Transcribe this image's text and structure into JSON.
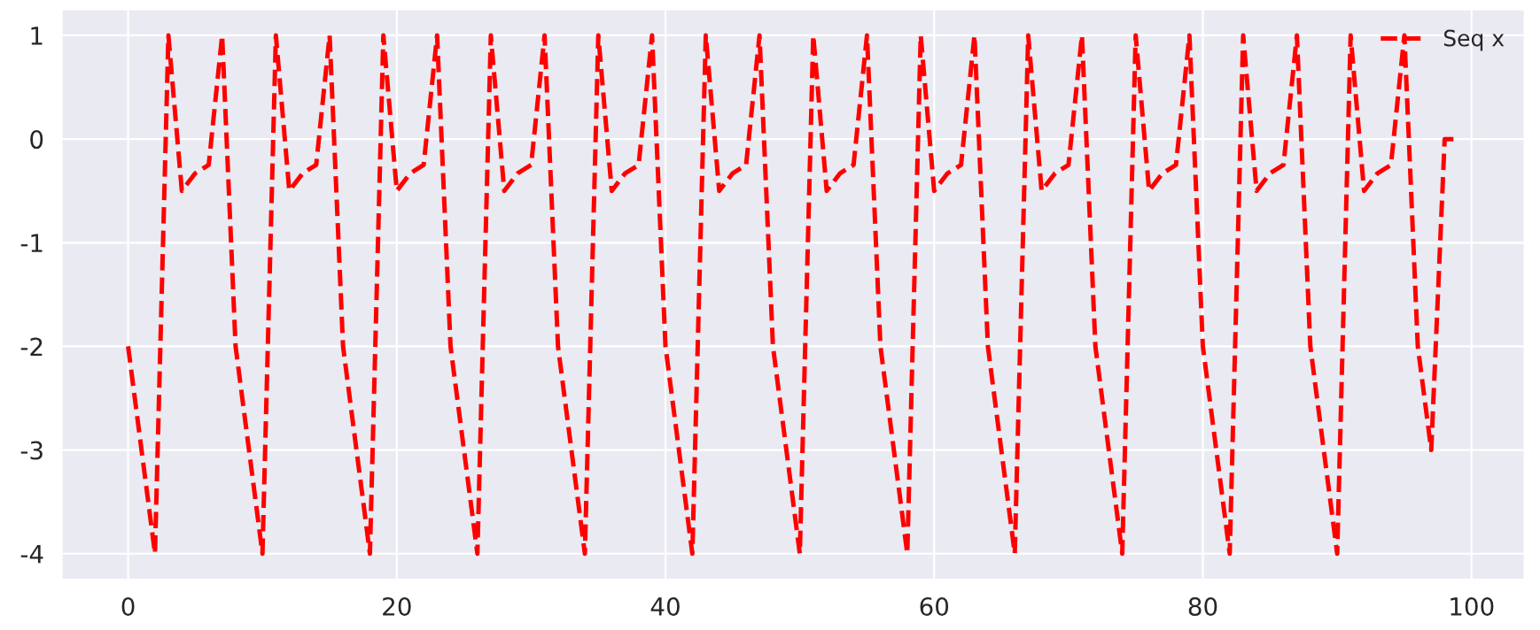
{
  "chart_data": {
    "type": "line",
    "x": [
      0,
      1,
      2,
      3,
      4,
      5,
      6,
      7,
      8,
      9,
      10,
      11,
      12,
      13,
      14,
      15,
      16,
      17,
      18,
      19,
      20,
      21,
      22,
      23,
      24,
      25,
      26,
      27,
      28,
      29,
      30,
      31,
      32,
      33,
      34,
      35,
      36,
      37,
      38,
      39,
      40,
      41,
      42,
      43,
      44,
      45,
      46,
      47,
      48,
      49,
      50,
      51,
      52,
      53,
      54,
      55,
      56,
      57,
      58,
      59,
      60,
      61,
      62,
      63,
      64,
      65,
      66,
      67,
      68,
      69,
      70,
      71,
      72,
      73,
      74,
      75,
      76,
      77,
      78,
      79,
      80,
      81,
      82,
      83,
      84,
      85,
      86,
      87,
      88,
      89,
      90,
      91,
      92,
      93,
      94,
      95,
      96,
      97,
      98,
      99
    ],
    "series": [
      {
        "name": "Seq x",
        "color": "#ff0000",
        "values": [
          -2,
          -3,
          -4,
          1,
          -0.5,
          -0.33,
          -0.25,
          1,
          -2,
          -3,
          -4,
          1,
          -0.5,
          -0.33,
          -0.25,
          1,
          -2,
          -3,
          -4,
          1,
          -0.5,
          -0.33,
          -0.25,
          1,
          -2,
          -3,
          -4,
          1,
          -0.5,
          -0.33,
          -0.25,
          1,
          -2,
          -3,
          -4,
          1,
          -0.5,
          -0.33,
          -0.25,
          1,
          -2,
          -3,
          -4,
          1,
          -0.5,
          -0.33,
          -0.25,
          1,
          -2,
          -3,
          -4,
          1,
          -0.5,
          -0.33,
          -0.25,
          1,
          -2,
          -3,
          -4,
          1,
          -0.5,
          -0.33,
          -0.25,
          1,
          -2,
          -3,
          -4,
          1,
          -0.5,
          -0.33,
          -0.25,
          1,
          -2,
          -3,
          -4,
          1,
          -0.5,
          -0.33,
          -0.25,
          1,
          -2,
          -3,
          -4,
          1,
          -0.5,
          -0.33,
          -0.25,
          1,
          -2,
          -3,
          -4,
          1,
          -0.5,
          -0.33,
          -0.25,
          1,
          -2,
          -3,
          0,
          0
        ]
      }
    ],
    "xlim": [
      -4.95,
      103.95
    ],
    "ylim": [
      -4.25,
      1.25
    ],
    "xticks": [
      0,
      20,
      40,
      60,
      80,
      100
    ],
    "yticks": [
      -4,
      -3,
      -2,
      -1,
      0,
      1
    ],
    "grid": true,
    "legend": "top right",
    "line_style": "dashed",
    "marker": "none"
  }
}
